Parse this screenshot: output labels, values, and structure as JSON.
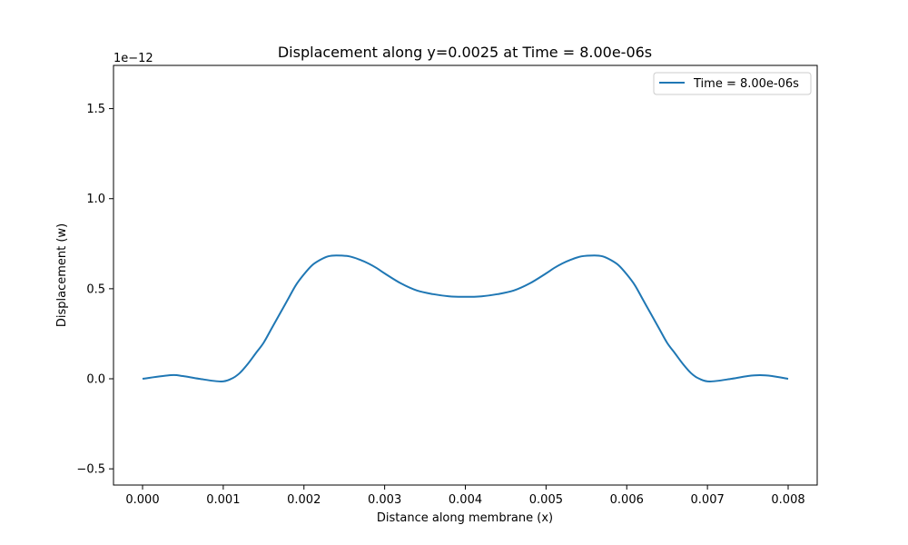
{
  "chart_data": {
    "type": "line",
    "title": "Displacement along y=0.0025 at Time = 8.00e-06s",
    "xlabel": "Distance along membrane (x)",
    "ylabel": "Displacement (w)",
    "y_offset_label": "1e−12",
    "xlim": [
      -0.00036,
      0.00836
    ],
    "ylim": [
      -0.59,
      1.74
    ],
    "x_scale_factor": 1,
    "y_scale_factor": 1e-12,
    "x_ticks": [
      0.0,
      0.001,
      0.002,
      0.003,
      0.004,
      0.005,
      0.006,
      0.007,
      0.008
    ],
    "x_tick_labels": [
      "0.000",
      "0.001",
      "0.002",
      "0.003",
      "0.004",
      "0.005",
      "0.006",
      "0.007",
      "0.008"
    ],
    "y_ticks": [
      -0.5,
      0.0,
      0.5,
      1.0,
      1.5
    ],
    "y_tick_labels": [
      "−0.5",
      "0.0",
      "0.5",
      "1.0",
      "1.5"
    ],
    "grid": false,
    "legend_position": "top-right",
    "series": [
      {
        "name": "Time = 8.00e-06s",
        "color": "#1f77b4",
        "x": [
          0.0,
          0.00035,
          0.0005,
          0.0007,
          0.00097,
          0.0011,
          0.0012,
          0.0013,
          0.0014,
          0.0015,
          0.0016,
          0.0017,
          0.0018,
          0.0019,
          0.002,
          0.0021,
          0.0022,
          0.0023,
          0.0024,
          0.00256,
          0.0027,
          0.0028,
          0.0029,
          0.003,
          0.0032,
          0.0034,
          0.0036,
          0.0038,
          0.004,
          0.0042,
          0.0044,
          0.0046,
          0.0048,
          0.005,
          0.0051,
          0.0052,
          0.0053,
          0.00544,
          0.0056,
          0.0057,
          0.0058,
          0.0059,
          0.006,
          0.0061,
          0.0062,
          0.0063,
          0.0064,
          0.0065,
          0.0066,
          0.0067,
          0.0068,
          0.0069,
          0.00703,
          0.0073,
          0.0075,
          0.00765,
          0.0078,
          0.008
        ],
        "y": [
          0.0,
          0.02,
          0.015,
          0.0,
          -0.015,
          0.0,
          0.03,
          0.08,
          0.14,
          0.2,
          0.28,
          0.36,
          0.44,
          0.52,
          0.58,
          0.63,
          0.66,
          0.68,
          0.685,
          0.68,
          0.66,
          0.64,
          0.615,
          0.585,
          0.53,
          0.49,
          0.47,
          0.458,
          0.455,
          0.458,
          0.47,
          0.49,
          0.53,
          0.585,
          0.615,
          0.64,
          0.66,
          0.68,
          0.685,
          0.68,
          0.66,
          0.63,
          0.58,
          0.52,
          0.44,
          0.36,
          0.28,
          0.2,
          0.14,
          0.08,
          0.03,
          0.0,
          -0.015,
          0.0,
          0.015,
          0.02,
          0.015,
          0.0
        ]
      }
    ]
  }
}
